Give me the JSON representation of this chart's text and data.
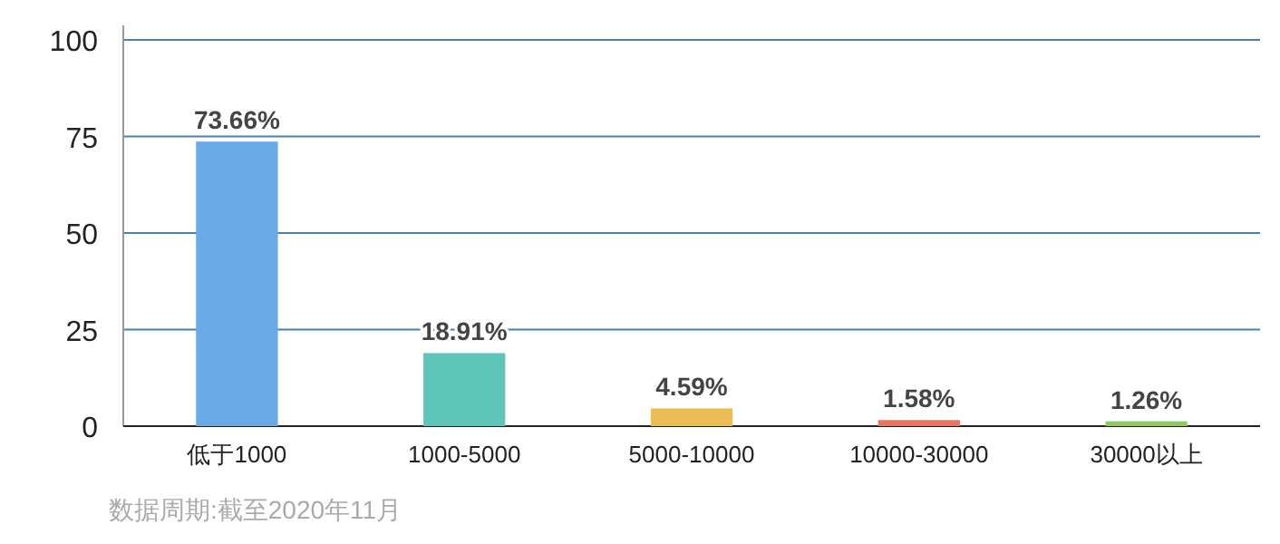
{
  "chart_data": {
    "type": "bar",
    "categories": [
      "低于1000",
      "1000-5000",
      "5000-10000",
      "10000-30000",
      "30000以上"
    ],
    "values": [
      73.66,
      18.91,
      4.59,
      1.58,
      1.26
    ],
    "value_labels": [
      "73.66%",
      "18.91%",
      "4.59%",
      "1.58%",
      "1.26%"
    ],
    "colors": [
      "#6aaae6",
      "#5fc5b9",
      "#ecbc57",
      "#e8765e",
      "#8dcb62"
    ],
    "ylim": [
      0,
      100
    ],
    "yticks": [
      0,
      25,
      50,
      75,
      100
    ],
    "grid": "y",
    "annotations": [
      "数据周期:截至2020年11月"
    ]
  }
}
